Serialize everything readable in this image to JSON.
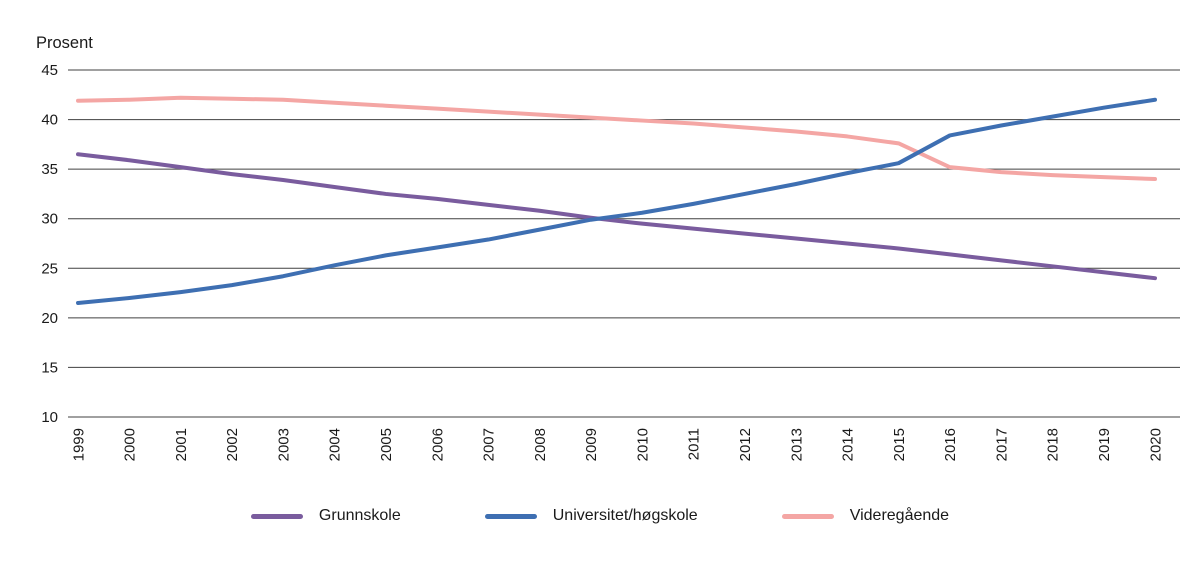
{
  "chart_data": {
    "type": "line",
    "title": "",
    "ylabel": "Prosent",
    "xlabel": "",
    "ylim": [
      10,
      45
    ],
    "yticks": [
      10,
      15,
      20,
      25,
      30,
      35,
      40,
      45
    ],
    "grid": "horizontal",
    "legend_position": "bottom",
    "axis_color": "#404040",
    "text_color": "#1a1a1a",
    "categories": [
      "1999",
      "2000",
      "2001",
      "2002",
      "2003",
      "2004",
      "2005",
      "2006",
      "2007",
      "2008",
      "2009",
      "2010",
      "2011",
      "2012",
      "2013",
      "2014",
      "2015",
      "2016",
      "2017",
      "2018",
      "2019",
      "2020"
    ],
    "series": [
      {
        "name": "Grunnskole",
        "color": "#7A5C9E",
        "values": [
          36.5,
          35.9,
          35.2,
          34.5,
          33.9,
          33.2,
          32.5,
          32.0,
          31.4,
          30.8,
          30.1,
          29.5,
          29.0,
          28.5,
          28.0,
          27.5,
          27.0,
          26.4,
          25.8,
          25.2,
          24.6,
          24.0
        ]
      },
      {
        "name": "Universitet/høgskole",
        "color": "#3E6FB2",
        "values": [
          21.5,
          22.0,
          22.6,
          23.3,
          24.2,
          25.3,
          26.3,
          27.1,
          27.9,
          28.9,
          29.9,
          30.6,
          31.5,
          32.5,
          33.5,
          34.6,
          35.6,
          38.4,
          39.4,
          40.3,
          41.2,
          42.0
        ]
      },
      {
        "name": "Videregående",
        "color": "#F4A6A4",
        "values": [
          41.9,
          42.0,
          42.2,
          42.1,
          42.0,
          41.7,
          41.4,
          41.1,
          40.8,
          40.5,
          40.2,
          39.9,
          39.6,
          39.2,
          38.8,
          38.3,
          37.6,
          35.2,
          34.7,
          34.4,
          34.2,
          34.0
        ]
      }
    ]
  }
}
